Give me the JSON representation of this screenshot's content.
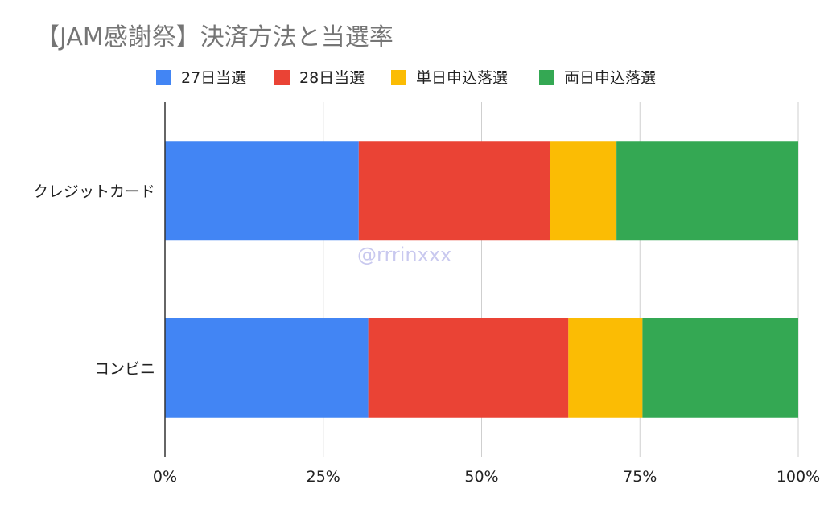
{
  "chart_data": {
    "type": "bar",
    "orientation": "horizontal",
    "stacked": "percent",
    "title": "【JAM感謝祭】決済方法と当選率",
    "categories": [
      "クレジットカード",
      "コンビニ"
    ],
    "series": [
      {
        "name": "27日当選",
        "color": "#4285f4",
        "values": [
          30.6,
          32.1
        ]
      },
      {
        "name": "28日当選",
        "color": "#ea4335",
        "values": [
          30.2,
          31.6
        ]
      },
      {
        "name": "単日申込落選",
        "color": "#fbbc04",
        "values": [
          10.5,
          11.7
        ]
      },
      {
        "name": "両日申込落選",
        "color": "#34a853",
        "values": [
          28.7,
          24.6
        ]
      }
    ],
    "xlim": [
      0,
      100
    ],
    "xticks": [
      0,
      25,
      50,
      75,
      100
    ],
    "xtick_labels": [
      "0%",
      "25%",
      "50%",
      "75%",
      "100%"
    ],
    "xlabel": "",
    "ylabel": "",
    "grid": true,
    "legend_position": "top",
    "watermark": "@rrrinxxx"
  }
}
